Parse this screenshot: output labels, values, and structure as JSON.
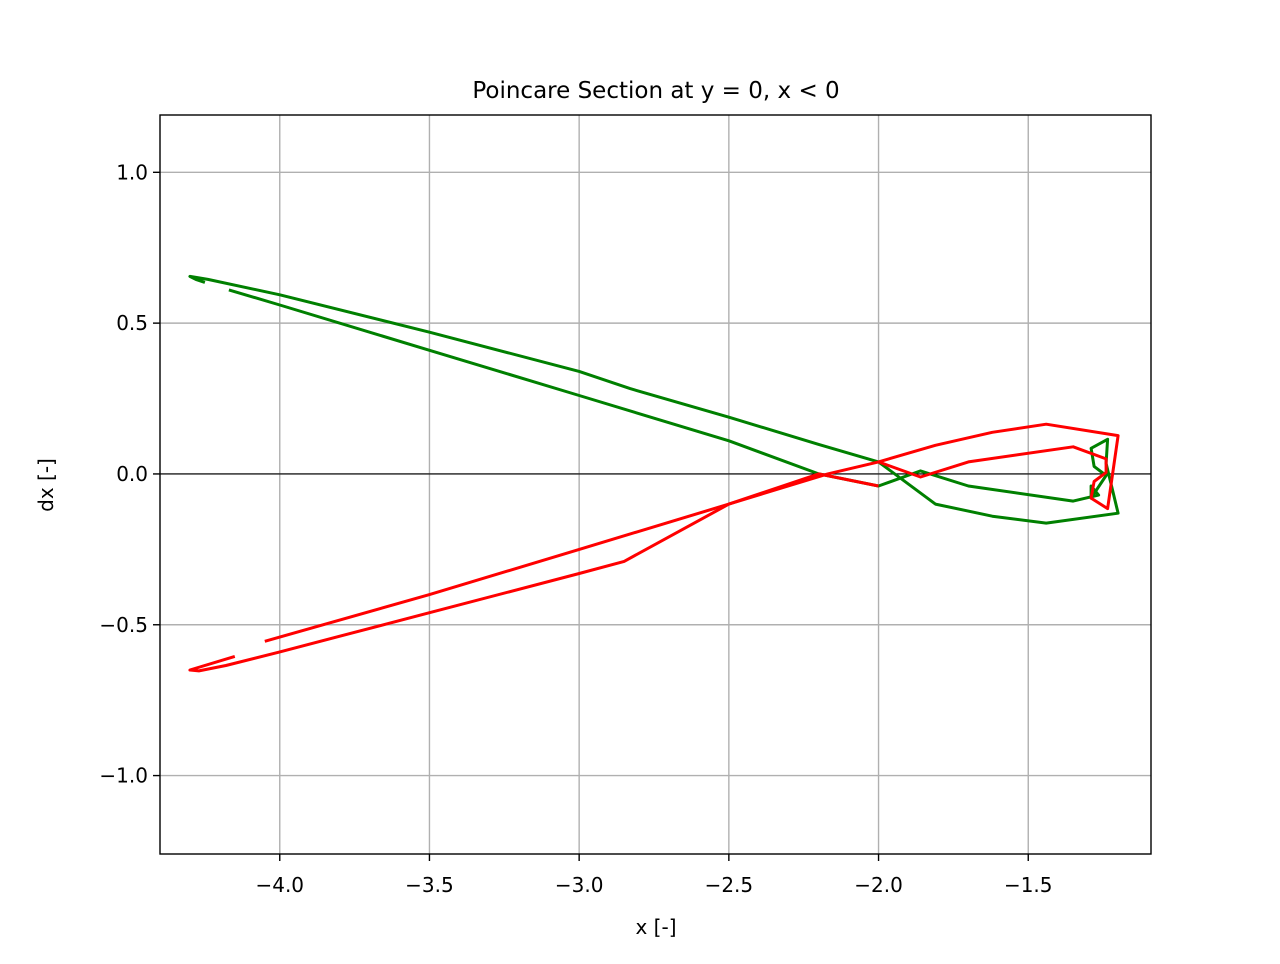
{
  "chart_data": {
    "type": "line",
    "title": "Poincare Section at y = 0, x < 0",
    "xlabel": "x [-]",
    "ylabel": "dx [-]",
    "xlim": [
      -4.4,
      -1.09
    ],
    "ylim": [
      -1.26,
      1.19
    ],
    "grid": true,
    "legend": "none",
    "x_ticks": [
      -4.0,
      -3.5,
      -3.0,
      -2.5,
      -2.0,
      -1.5
    ],
    "x_tick_labels": [
      "−4.0",
      "−3.5",
      "−3.0",
      "−2.5",
      "−2.0",
      "−1.5"
    ],
    "y_ticks": [
      1.0,
      0.5,
      0.0,
      -0.5,
      -1.0
    ],
    "y_tick_labels": [
      "1.0",
      "0.5",
      "0.0",
      "−0.5",
      "−1.0"
    ],
    "reference_line": {
      "y": 0.0,
      "color": "#000000"
    },
    "series": [
      {
        "color": "#008000",
        "segments": [
          [
            [
              -4.25,
              0.635
            ],
            [
              -4.28,
              0.645
            ],
            [
              -4.3,
              0.655
            ],
            [
              -4.24,
              0.645
            ],
            [
              -4.0,
              0.594
            ],
            [
              -3.5,
              0.47
            ],
            [
              -3.0,
              0.34
            ],
            [
              -2.83,
              0.283
            ],
            [
              -2.5,
              0.188
            ],
            [
              -2.2,
              0.098
            ],
            [
              -2.0,
              0.04
            ],
            [
              -1.81,
              -0.1
            ],
            [
              -1.62,
              -0.14
            ],
            [
              -1.44,
              -0.163
            ],
            [
              -1.2,
              -0.13
            ],
            [
              -1.24,
              0.035
            ],
            [
              -1.235,
              0.115
            ],
            [
              -1.29,
              0.085
            ],
            [
              -1.28,
              0.025
            ],
            [
              -1.24,
              -0.005
            ],
            [
              -1.29,
              -0.08
            ],
            [
              -1.29,
              -0.04
            ],
            [
              -1.265,
              -0.07
            ],
            [
              -1.35,
              -0.09
            ],
            [
              -1.7,
              -0.04
            ],
            [
              -1.86,
              0.01
            ],
            [
              -2.0,
              -0.04
            ],
            [
              -2.2,
              0.0
            ],
            [
              -2.5,
              0.11
            ],
            [
              -3.0,
              0.26
            ],
            [
              -3.5,
              0.41
            ],
            [
              -4.0,
              0.56
            ],
            [
              -4.17,
              0.61
            ]
          ]
        ]
      },
      {
        "color": "#ff0000",
        "segments": [
          [
            [
              -4.05,
              -0.555
            ],
            [
              -3.5,
              -0.4
            ],
            [
              -3.0,
              -0.25
            ],
            [
              -2.5,
              -0.1
            ],
            [
              -2.17,
              0.0
            ],
            [
              -2.0,
              0.04
            ],
            [
              -1.81,
              0.095
            ],
            [
              -1.62,
              0.138
            ],
            [
              -1.44,
              0.165
            ],
            [
              -1.2,
              0.127
            ],
            [
              -1.235,
              -0.115
            ],
            [
              -1.29,
              -0.08
            ],
            [
              -1.28,
              -0.025
            ],
            [
              -1.24,
              0.005
            ],
            [
              -1.24,
              0.05
            ],
            [
              -1.35,
              0.09
            ],
            [
              -1.7,
              0.04
            ],
            [
              -1.86,
              -0.01
            ],
            [
              -2.0,
              0.04
            ]
          ],
          [
            [
              -2.0,
              -0.04
            ],
            [
              -2.2,
              0.0
            ],
            [
              -2.5,
              -0.1
            ],
            [
              -2.85,
              -0.29
            ],
            [
              -3.0,
              -0.33
            ],
            [
              -3.5,
              -0.46
            ],
            [
              -4.0,
              -0.59
            ],
            [
              -4.18,
              -0.635
            ],
            [
              -4.27,
              -0.653
            ],
            [
              -4.3,
              -0.65
            ],
            [
              -4.15,
              -0.605
            ]
          ]
        ]
      }
    ]
  }
}
